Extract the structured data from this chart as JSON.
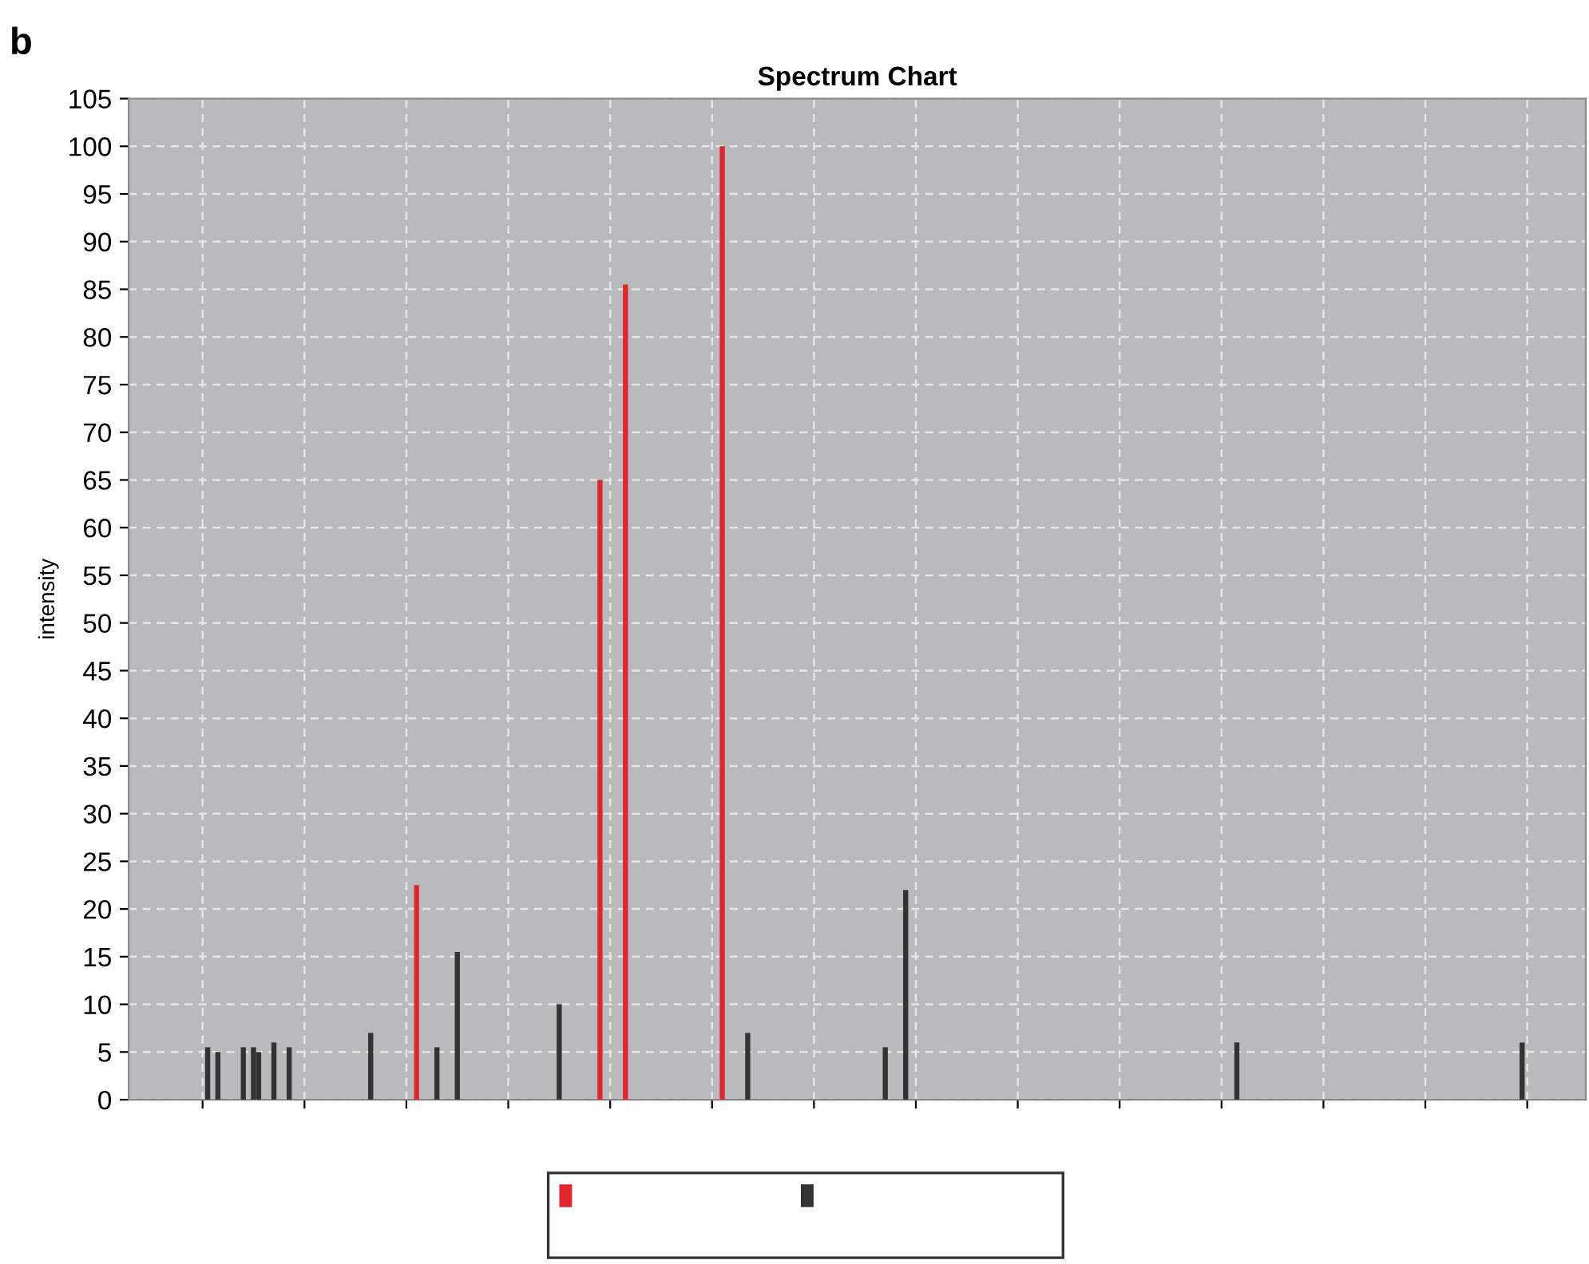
{
  "chart_data": {
    "type": "bar",
    "title": "Spectrum Chart",
    "ylabel": "intensity",
    "annotations": [
      "b"
    ],
    "categories": [
      null,
      null,
      null,
      null,
      null,
      null,
      null,
      null,
      null,
      null,
      null,
      null,
      null,
      null,
      null,
      null,
      null,
      null,
      null,
      null,
      null,
      null,
      null,
      null,
      null,
      null,
      null,
      null,
      null,
      null,
      null,
      null,
      null,
      null,
      null,
      null,
      null,
      null,
      null,
      null,
      null,
      null,
      null,
      null,
      null,
      null,
      null,
      null,
      null,
      null,
      null,
      null,
      null,
      null,
      null,
      null,
      null,
      null,
      null,
      null,
      null,
      null,
      null,
      null,
      null,
      null,
      null,
      null,
      null,
      null,
      null,
      null,
      null,
      null,
      null,
      null,
      null,
      null,
      null,
      null,
      null,
      null,
      null,
      null,
      null,
      null,
      null,
      null,
      null,
      null,
      null,
      null,
      null,
      null,
      null,
      null,
      null,
      null,
      null,
      null,
      null,
      null,
      null,
      null,
      null,
      null,
      null,
      null,
      null,
      null,
      null,
      null,
      null,
      null,
      null,
      null,
      null,
      null,
      null,
      null,
      null,
      null,
      null,
      null,
      null,
      null,
      null,
      null,
      null,
      null,
      null,
      null,
      null,
      null,
      null,
      null,
      null,
      null,
      null,
      null,
      null,
      null,
      null,
      null,
      null,
      null,
      null,
      null,
      null,
      null,
      null,
      null,
      null,
      null,
      null,
      null,
      null,
      null,
      null,
      null,
      null,
      null,
      null,
      null,
      null,
      null,
      null,
      null,
      null,
      null,
      null,
      null,
      null,
      null,
      null,
      null,
      null,
      null,
      null,
      null,
      null,
      null,
      null,
      null,
      null,
      null,
      null,
      null,
      null,
      null,
      null,
      null,
      null,
      null,
      null,
      null,
      null,
      null,
      null,
      null,
      null,
      null,
      null,
      null,
      null,
      null,
      null,
      null,
      null,
      null,
      null,
      null,
      null,
      null,
      null,
      null,
      null,
      null,
      null,
      null,
      null,
      null,
      null,
      null,
      null,
      null,
      null,
      null,
      null,
      null,
      null,
      null,
      null,
      null,
      null,
      null,
      null,
      null,
      null,
      null,
      null,
      null,
      null,
      null,
      null,
      null,
      null,
      null,
      null,
      null,
      null,
      null,
      null,
      null,
      null,
      null,
      null,
      null,
      null,
      null,
      null,
      null,
      null,
      null,
      null,
      null,
      null,
      null,
      null,
      null,
      null,
      null,
      null,
      null,
      null,
      null,
      null,
      null,
      null,
      null,
      null,
      null,
      null,
      null,
      null,
      null
    ],
    "series": [
      {
        "color": "#e0262b",
        "values": [
          null,
          null,
          null,
          null,
          null,
          null,
          null,
          null,
          null,
          null,
          null,
          null,
          null,
          null,
          null,
          null,
          null,
          null,
          null,
          null,
          null,
          null,
          null,
          null,
          null,
          null,
          null,
          null,
          null,
          null,
          null,
          null,
          null,
          null,
          null,
          null,
          null,
          null,
          null,
          null,
          null,
          null,
          null,
          null,
          null,
          null,
          null,
          null,
          null,
          null,
          null,
          null,
          null,
          null,
          null,
          null,
          22.5,
          null,
          null,
          null,
          null,
          null,
          null,
          null,
          null,
          null,
          null,
          null,
          null,
          null,
          null,
          null,
          null,
          null,
          null,
          null,
          null,
          null,
          null,
          null,
          null,
          null,
          null,
          null,
          null,
          null,
          null,
          null,
          null,
          null,
          null,
          null,
          65,
          null,
          null,
          null,
          null,
          85.5,
          null,
          null,
          null,
          null,
          null,
          null,
          null,
          null,
          null,
          null,
          null,
          null,
          null,
          null,
          null,
          null,
          null,
          null,
          100,
          null,
          null,
          null,
          null,
          null,
          null,
          null,
          null,
          null,
          null,
          null,
          null,
          null,
          null,
          null,
          null,
          null,
          null,
          null,
          null,
          null,
          null,
          null,
          null,
          null,
          null,
          null,
          null,
          null,
          null,
          null,
          null,
          null,
          null,
          null,
          null,
          null,
          null,
          null,
          null,
          null,
          null,
          null,
          null,
          null,
          null,
          null,
          null,
          null,
          null,
          null,
          null,
          null,
          null,
          null,
          null,
          null,
          null,
          null,
          null,
          null,
          null,
          null,
          null,
          null,
          null,
          null,
          null,
          null,
          null,
          null,
          null,
          null,
          null,
          null,
          null,
          null,
          null,
          null,
          null,
          null,
          null,
          null,
          null,
          null,
          null,
          null,
          null,
          null,
          null,
          null,
          null,
          null,
          null,
          null,
          null,
          null,
          null,
          null,
          null,
          null,
          null,
          null,
          null,
          null,
          null,
          null,
          null,
          null,
          null,
          null,
          null,
          null,
          null,
          null,
          null,
          null,
          null,
          null,
          null,
          null,
          null,
          null,
          null,
          null,
          null,
          null,
          null,
          null,
          null,
          null,
          null,
          null,
          null,
          null,
          null,
          null,
          null,
          null,
          null,
          null,
          null,
          null,
          null,
          null,
          null,
          null,
          null,
          null,
          null,
          null,
          null,
          null,
          null,
          null,
          null,
          null,
          null,
          null,
          null,
          null,
          null,
          null,
          null,
          null,
          null,
          null,
          null,
          null
        ]
      },
      {
        "color": "#333333",
        "values": [
          null,
          null,
          null,
          null,
          null,
          null,
          null,
          null,
          null,
          null,
          null,
          null,
          null,
          null,
          null,
          5.5,
          null,
          5,
          null,
          null,
          null,
          null,
          5.5,
          null,
          5.5,
          5,
          null,
          null,
          6,
          null,
          null,
          5.5,
          null,
          null,
          null,
          null,
          null,
          null,
          null,
          null,
          null,
          null,
          null,
          null,
          null,
          null,
          null,
          7,
          null,
          null,
          null,
          null,
          null,
          null,
          null,
          null,
          null,
          null,
          null,
          null,
          5.5,
          null,
          null,
          null,
          15.5,
          null,
          null,
          null,
          null,
          null,
          null,
          null,
          null,
          null,
          null,
          null,
          null,
          null,
          null,
          null,
          null,
          null,
          null,
          null,
          10,
          null,
          null,
          null,
          null,
          null,
          null,
          null,
          null,
          null,
          null,
          null,
          null,
          null,
          null,
          null,
          null,
          null,
          null,
          null,
          null,
          null,
          null,
          null,
          null,
          null,
          null,
          null,
          null,
          null,
          null,
          null,
          null,
          null,
          null,
          null,
          null,
          7,
          null,
          null,
          null,
          null,
          null,
          null,
          null,
          null,
          null,
          null,
          null,
          null,
          null,
          null,
          null,
          null,
          null,
          null,
          null,
          null,
          null,
          null,
          null,
          null,
          null,
          null,
          5.5,
          null,
          null,
          null,
          22,
          null,
          null,
          null,
          null,
          null,
          null,
          null,
          null,
          null,
          null,
          null,
          null,
          null,
          null,
          null,
          null,
          null,
          null,
          null,
          null,
          null,
          null,
          null,
          null,
          null,
          null,
          null,
          null,
          null,
          null,
          null,
          null,
          null,
          null,
          null,
          null,
          null,
          null,
          null,
          null,
          null,
          null,
          null,
          null,
          null,
          null,
          null,
          null,
          null,
          null,
          null,
          null,
          null,
          null,
          null,
          null,
          null,
          null,
          null,
          null,
          null,
          null,
          null,
          null,
          6,
          null,
          null,
          null,
          null,
          null,
          null,
          null,
          null,
          null,
          null,
          null,
          null,
          null,
          null,
          null,
          null,
          null,
          null,
          null,
          null,
          null,
          null,
          null,
          null,
          null,
          null,
          null,
          null,
          null,
          null,
          null,
          null,
          null,
          null,
          null,
          null,
          null,
          null,
          null,
          null,
          null,
          null,
          null,
          null,
          null,
          null,
          null,
          null,
          null,
          null,
          null,
          null,
          null,
          null,
          null,
          6,
          null,
          null,
          null,
          null,
          null,
          null,
          null,
          null,
          null,
          null,
          null,
          null
        ]
      }
    ],
    "ylim": [
      0,
      105
    ],
    "yticks": [
      0,
      5,
      10,
      15,
      20,
      25,
      30,
      35,
      40,
      45,
      50,
      55,
      60,
      65,
      70,
      75,
      80,
      85,
      90,
      95,
      100,
      105
    ],
    "grid": true
  }
}
